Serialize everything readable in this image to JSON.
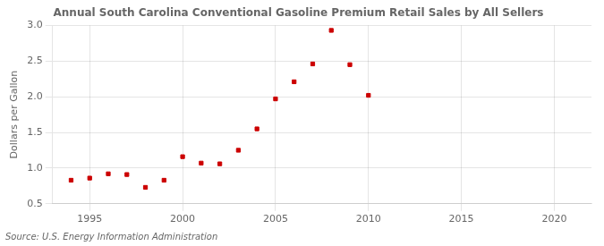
{
  "chart_data": {
    "type": "scatter",
    "title": "Annual South Carolina Conventional Gasoline Premium Retail Sales by All Sellers",
    "ylabel": "Dollars per Gallon",
    "annotations": [
      "Source: U.S. Energy Information Administration"
    ],
    "x": [
      1994,
      1995,
      1996,
      1997,
      1998,
      1999,
      2000,
      2001,
      2002,
      2003,
      2004,
      2005,
      2006,
      2007,
      2008,
      2009,
      2010
    ],
    "values": [
      0.83,
      0.86,
      0.92,
      0.91,
      0.73,
      0.83,
      1.16,
      1.07,
      1.06,
      1.25,
      1.55,
      1.97,
      2.21,
      2.46,
      2.93,
      2.45,
      2.02
    ],
    "color": "#cc0000",
    "marker": "square",
    "xlim": [
      1993,
      2022
    ],
    "ylim": [
      0.5,
      3.0
    ],
    "xticks": [
      1995,
      2000,
      2005,
      2010,
      2015,
      2020
    ],
    "yticks": [
      0.5,
      {
        "value": 1,
        "label": "1.0"
      },
      1.5,
      {
        "value": 2,
        "label": "2.0"
      },
      2.5,
      {
        "value": 3,
        "label": "3.0"
      }
    ],
    "grid": true
  }
}
